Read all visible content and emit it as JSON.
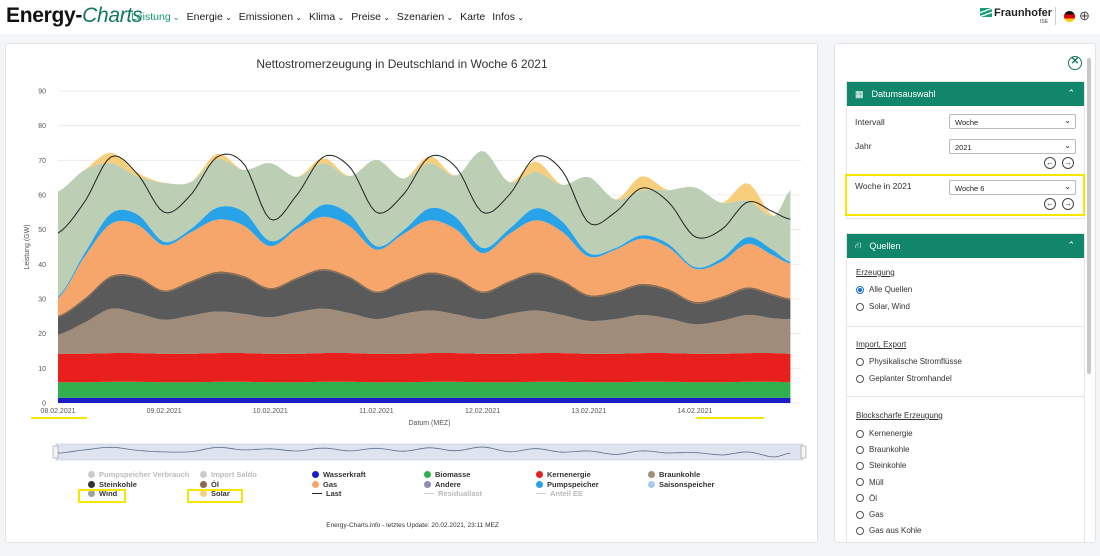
{
  "header": {
    "logo_main": "Energy-",
    "logo_accent": "Charts",
    "nav": [
      {
        "label": "Leistung",
        "active": true
      },
      {
        "label": "Energie",
        "active": false
      },
      {
        "label": "Emissionen",
        "active": false
      },
      {
        "label": "Klima",
        "active": false
      },
      {
        "label": "Preise",
        "active": false
      },
      {
        "label": "Szenarien",
        "active": false
      },
      {
        "label": "Karte",
        "active": false
      },
      {
        "label": "Infos",
        "active": false
      }
    ],
    "brand": "Fraunhofer",
    "brand_sub": "ISE"
  },
  "chart_data": {
    "type": "area",
    "title": "Nettostromerzeugung in Deutschland in Woche 6 2021",
    "xlabel": "Datum (MEZ)",
    "ylabel": "Leistung (GW)",
    "ylim": [
      0,
      90
    ],
    "yticks": [
      0,
      10,
      20,
      30,
      40,
      50,
      60,
      70,
      80,
      90
    ],
    "x_tick_labels": [
      "08.02.2021",
      "09.02.2021",
      "10.02.2021",
      "11.02.2021",
      "12.02.2021",
      "13.02.2021",
      "14.02.2021"
    ],
    "x_range_days": [
      0,
      7
    ],
    "grid": true,
    "stacking": "stacked",
    "stack_order": [
      "Wasserkraft",
      "Biomasse",
      "Kernenergie",
      "Braunkohle",
      "Steinkohle",
      "Öl",
      "Gas",
      "Pumpspeicher",
      "Wind",
      "Solar"
    ],
    "x_days": [
      0,
      0.25,
      0.5,
      0.75,
      1,
      1.25,
      1.5,
      1.75,
      2,
      2.25,
      2.5,
      2.75,
      3,
      3.25,
      3.5,
      3.75,
      4,
      4.25,
      4.5,
      4.75,
      5,
      5.25,
      5.5,
      5.75,
      6,
      6.25,
      6.5,
      6.75,
      6.9
    ],
    "series": [
      {
        "name": "Wasserkraft",
        "color": "#1c1cc6",
        "values": [
          1.5,
          1.5,
          1.5,
          1.5,
          1.5,
          1.5,
          1.5,
          1.5,
          1.5,
          1.5,
          1.5,
          1.5,
          1.5,
          1.5,
          1.5,
          1.5,
          1.5,
          1.5,
          1.5,
          1.5,
          1.5,
          1.5,
          1.5,
          1.5,
          1.5,
          1.5,
          1.5,
          1.5,
          1.5
        ]
      },
      {
        "name": "Biomasse",
        "color": "#2fb04d",
        "values": [
          4.5,
          4.5,
          4.6,
          4.6,
          4.5,
          4.5,
          4.6,
          4.6,
          4.5,
          4.5,
          4.6,
          4.6,
          4.5,
          4.5,
          4.6,
          4.6,
          4.5,
          4.5,
          4.6,
          4.6,
          4.5,
          4.5,
          4.6,
          4.6,
          4.5,
          4.5,
          4.6,
          4.6,
          4.5
        ]
      },
      {
        "name": "Kernenergie",
        "color": "#e8201d",
        "values": [
          8.2,
          8.2,
          8.3,
          8.3,
          8.2,
          8.2,
          8.3,
          8.3,
          8.2,
          8.2,
          8.3,
          8.3,
          8.2,
          8.2,
          8.3,
          8.3,
          8.2,
          8.2,
          8.3,
          8.3,
          8.2,
          8.2,
          8.3,
          8.3,
          8.2,
          8.2,
          8.3,
          8.3,
          8.2
        ]
      },
      {
        "name": "Braunkohle",
        "color": "#a08c7a",
        "values": [
          5.5,
          9,
          12.8,
          11.5,
          9.8,
          11,
          12,
          11.3,
          10.5,
          12,
          12.8,
          11.5,
          10,
          11.5,
          12.3,
          11.2,
          10,
          11.5,
          12.3,
          11,
          9.5,
          10,
          11,
          10,
          8.5,
          9.5,
          11,
          10,
          10
        ]
      },
      {
        "name": "Steinkohle",
        "color": "#5a5a5a",
        "values": [
          5,
          6.5,
          9,
          10,
          8,
          9.5,
          11,
          10.5,
          8,
          9.5,
          11,
          10,
          7.5,
          9,
          10.5,
          10,
          7.5,
          9,
          10.5,
          9.5,
          7,
          7.5,
          8.5,
          8,
          6,
          6.5,
          7.5,
          6.5,
          5.5
        ]
      },
      {
        "name": "Öl",
        "color": "#8b6b4a",
        "values": [
          0.5,
          0.5,
          0.5,
          0.5,
          0.5,
          0.5,
          0.5,
          0.5,
          0.5,
          0.5,
          0.5,
          0.5,
          0.5,
          0.5,
          0.5,
          0.5,
          0.5,
          0.5,
          0.5,
          0.5,
          0.5,
          0.5,
          0.5,
          0.5,
          0.5,
          0.5,
          0.5,
          0.5,
          0.5
        ]
      },
      {
        "name": "Gas",
        "color": "#f6a66b",
        "values": [
          5,
          12,
          15,
          15,
          13,
          14,
          15,
          14.5,
          12,
          14,
          15,
          14.5,
          12,
          13.5,
          15,
          14,
          11,
          13.5,
          15,
          14,
          11,
          12,
          13,
          12,
          9.5,
          10,
          12.5,
          11,
          10
        ]
      },
      {
        "name": "Pumpspeicher",
        "color": "#29a3e8",
        "values": [
          0.5,
          1,
          3,
          3,
          1,
          1,
          3.5,
          4,
          1.5,
          1,
          3.5,
          3.5,
          1,
          1,
          3.5,
          3.5,
          1.5,
          1.5,
          3.5,
          3,
          1,
          0.5,
          1,
          1,
          0.5,
          1,
          2,
          1.5,
          0.5
        ]
      },
      {
        "name": "Wind",
        "color": "#bccfb4",
        "values": [
          30.3,
          24,
          14.5,
          11,
          17,
          13.5,
          14,
          12,
          22.5,
          14,
          12,
          11,
          25,
          15,
          13,
          12,
          28,
          13.5,
          10.5,
          10.5,
          22,
          14,
          13,
          15.5,
          23,
          16,
          10.5,
          10,
          20.8
        ]
      },
      {
        "name": "Solar",
        "color": "#f7ce7c",
        "values": [
          0,
          0,
          3,
          1,
          0,
          0,
          1.5,
          0,
          0,
          0,
          1.5,
          0,
          0,
          0,
          2,
          0,
          0,
          0,
          3,
          0,
          0,
          0,
          4,
          0,
          0,
          0,
          5,
          0,
          0
        ]
      }
    ],
    "load": {
      "name": "Last",
      "color": "#222222",
      "values": [
        49,
        58,
        71,
        66,
        55,
        60,
        71,
        69,
        53,
        60,
        71,
        68,
        55,
        60,
        71,
        68,
        55,
        60,
        71,
        67,
        52,
        55,
        62,
        58,
        48,
        50,
        58,
        55,
        53
      ]
    },
    "legend": [
      {
        "name": "Pumpspeicher Verbrauch",
        "color": "#cccccc",
        "kind": "dot",
        "enabled": false
      },
      {
        "name": "Import Saldo",
        "color": "#cccccc",
        "kind": "dot",
        "enabled": false
      },
      {
        "name": "Wasserkraft",
        "color": "#1c1cc6",
        "kind": "dot",
        "enabled": true
      },
      {
        "name": "Biomasse",
        "color": "#2fb04d",
        "kind": "dot",
        "enabled": true
      },
      {
        "name": "Kernenergie",
        "color": "#e8201d",
        "kind": "dot",
        "enabled": true
      },
      {
        "name": "Braunkohle",
        "color": "#a08c7a",
        "kind": "dot",
        "enabled": true
      },
      {
        "name": "Steinkohle",
        "color": "#333333",
        "kind": "dot",
        "enabled": true
      },
      {
        "name": "Öl",
        "color": "#8b6b4a",
        "kind": "dot",
        "enabled": true
      },
      {
        "name": "Gas",
        "color": "#f6a66b",
        "kind": "dot",
        "enabled": true
      },
      {
        "name": "Andere",
        "color": "#8c8cb0",
        "kind": "dot",
        "enabled": true
      },
      {
        "name": "Pumpspeicher",
        "color": "#29a3e8",
        "kind": "dot",
        "enabled": true
      },
      {
        "name": "Saisonspeicher",
        "color": "#a9c9ee",
        "kind": "dot",
        "enabled": true
      },
      {
        "name": "Wind",
        "color": "#9aa597",
        "kind": "dot",
        "enabled": true
      },
      {
        "name": "Solar",
        "color": "#f7ce7c",
        "kind": "dot",
        "enabled": true
      },
      {
        "name": "Last",
        "color": "#222222",
        "kind": "line",
        "enabled": true
      },
      {
        "name": "Residuallast",
        "color": "#cccccc",
        "kind": "line",
        "enabled": false
      },
      {
        "name": "Anteil EE",
        "color": "#cccccc",
        "kind": "line",
        "enabled": false
      }
    ],
    "legend_placement": "bottom"
  },
  "credit": "Energy-Charts.info - letztes Update: 20.02.2021, 23:11 MEZ",
  "sidebar": {
    "datum": {
      "title": "Datumsauswahl",
      "intervall_label": "Intervall",
      "intervall_value": "Woche",
      "jahr_label": "Jahr",
      "jahr_value": "2021",
      "woche_label": "Woche in 2021",
      "woche_value": "Woche 6"
    },
    "quellen": {
      "title": "Quellen",
      "erzeugung_title": "Erzeugung",
      "erzeugung_options": [
        {
          "label": "Alle Quellen",
          "selected": true
        },
        {
          "label": "Solar, Wind",
          "selected": false
        }
      ],
      "import_title": "Import, Export",
      "import_options": [
        {
          "label": "Physikalische Stromflüsse",
          "selected": false
        },
        {
          "label": "Geplanter Stromhandel",
          "selected": false
        }
      ],
      "block_title": "Blockscharfe Erzeugung",
      "block_options": [
        {
          "label": "Kernenergie",
          "selected": false
        },
        {
          "label": "Braunkohle",
          "selected": false
        },
        {
          "label": "Steinkohle",
          "selected": false
        },
        {
          "label": "Müll",
          "selected": false
        },
        {
          "label": "Öl",
          "selected": false
        },
        {
          "label": "Gas",
          "selected": false
        },
        {
          "label": "Gas aus Kohle",
          "selected": false
        }
      ]
    }
  }
}
